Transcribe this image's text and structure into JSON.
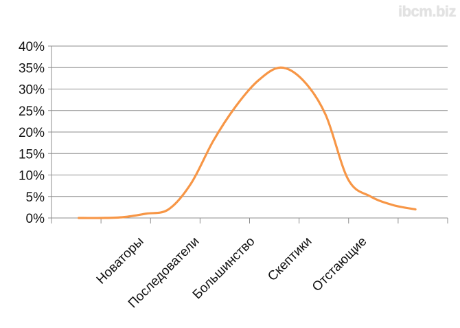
{
  "watermark": "ibcm.biz",
  "chart_data": {
    "type": "line",
    "categories": [
      "Новаторы",
      "Последователи",
      "Большинство",
      "Скептики",
      "Отстающие"
    ],
    "x": [
      0,
      0.5,
      1,
      1.5,
      2,
      2.5,
      3,
      3.5,
      4,
      4.5,
      5,
      5.5,
      6,
      6.5,
      7,
      7.5
    ],
    "values": [
      0,
      0,
      0.2,
      1,
      2,
      8,
      18,
      26,
      32,
      35,
      32,
      24,
      9,
      5,
      3,
      2
    ],
    "series": [
      {
        "values": [
          0,
          0,
          0.2,
          1,
          2,
          8,
          18,
          26,
          32,
          35,
          32,
          24,
          9,
          5,
          3,
          2
        ],
        "color": "#f79646"
      }
    ],
    "title": "",
    "xlabel": "",
    "ylabel": "",
    "ylim": [
      0,
      40
    ],
    "yticks": [
      "0%",
      "5%",
      "10%",
      "15%",
      "20%",
      "25%",
      "30%",
      "35%",
      "40%"
    ],
    "grid": true,
    "smooth": true
  }
}
